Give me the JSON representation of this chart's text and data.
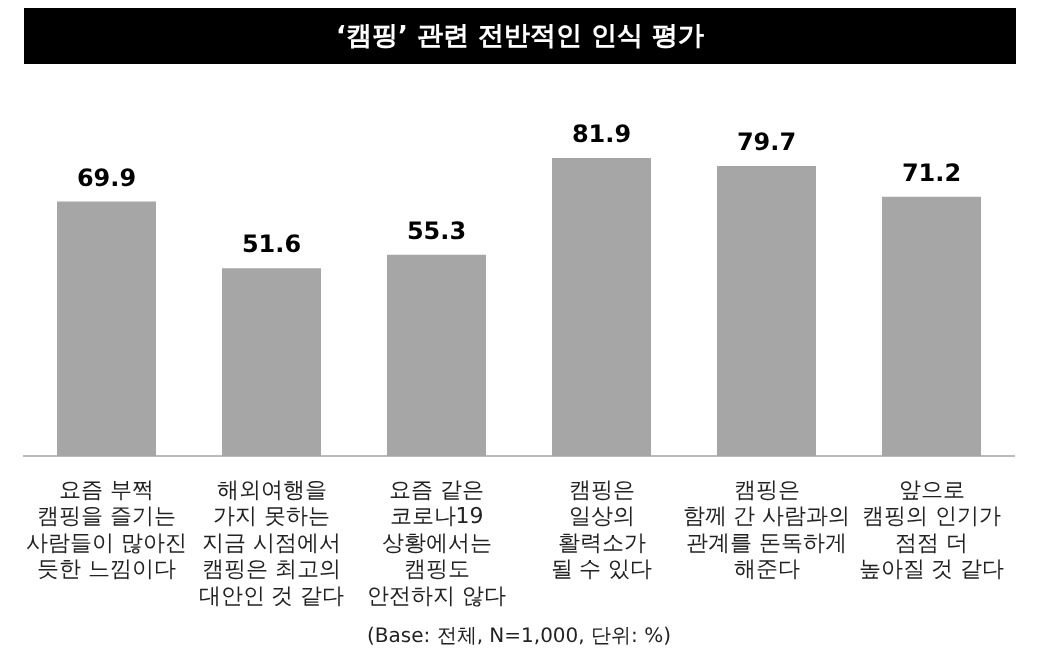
{
  "chart_data": {
    "type": "bar",
    "title": "‘캠핑’ 관련 전반적인 인식 평가",
    "categories": [
      "요즘 부쩍\n캠핑을 즐기는\n사람들이 많아진\n듯한 느낌이다",
      "해외여행을\n가지 못하는\n지금 시점에서\n캠핑은 최고의\n대안인 것 같다",
      "요즘 같은\n코로나19\n상황에서는\n캠핑도\n안전하지 않다",
      "캠핑은\n일상의\n활력소가\n될 수 있다",
      "캠핑은\n함께 간 사람과의\n관계를 돈독하게\n해준다",
      "앞으로\n캠핑의 인기가\n점점 더\n높아질 것 같다"
    ],
    "values": [
      69.9,
      51.6,
      55.3,
      81.9,
      79.7,
      71.2
    ],
    "color": "#a6a6a6",
    "data_labels": true,
    "annotations": [
      "(Base: 전체, N=1,000, 단위: %)"
    ]
  }
}
